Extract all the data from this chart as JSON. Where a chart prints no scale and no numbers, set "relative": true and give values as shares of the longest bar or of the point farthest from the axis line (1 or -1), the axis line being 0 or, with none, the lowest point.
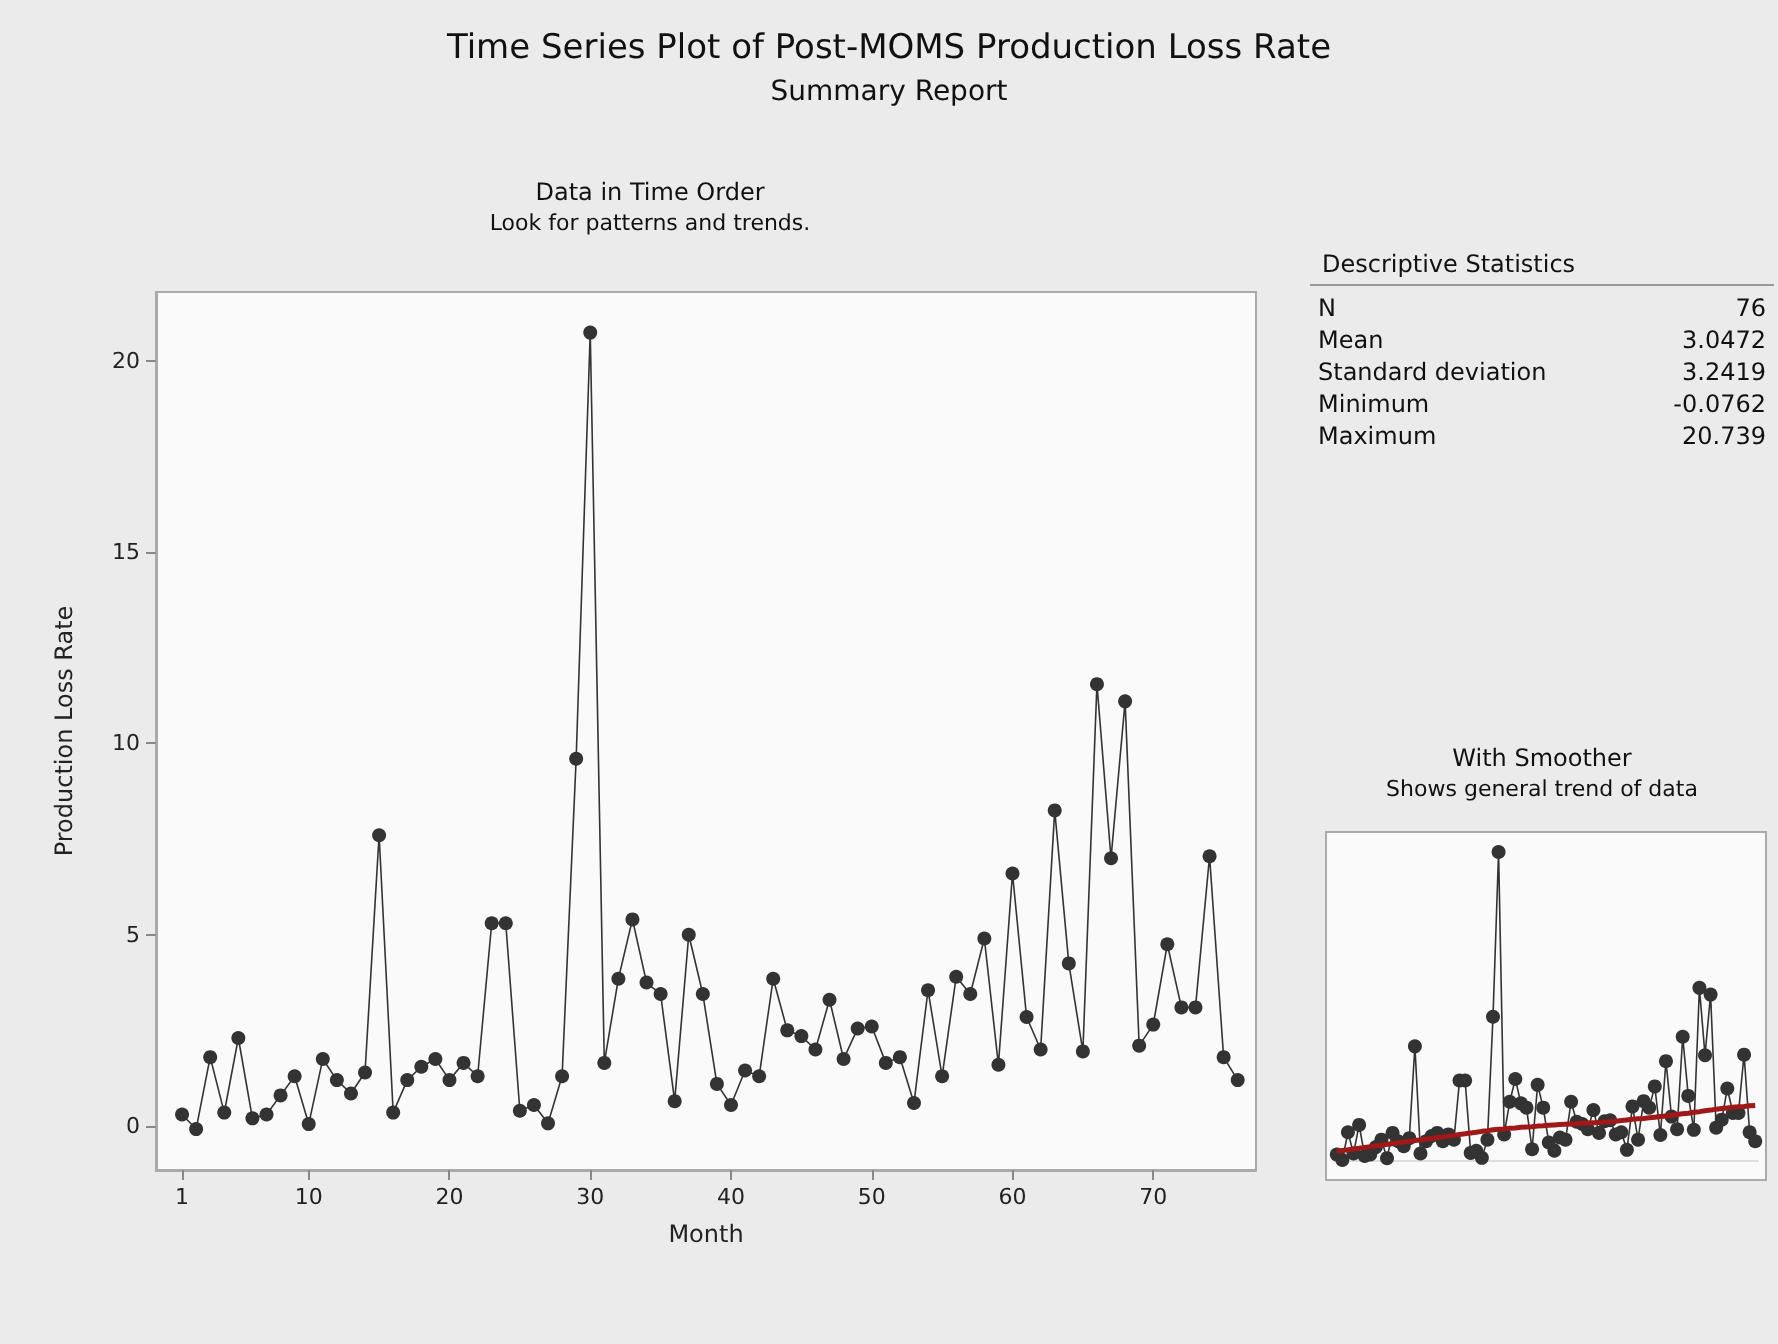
{
  "chart_data": [
    {
      "type": "line",
      "title": "Data in Time Order",
      "subtitle": "Look for patterns and trends.",
      "xlabel": "Month",
      "ylabel": "Production Loss Rate",
      "annotations": [
        "Time Series Plot of Post-MOMS Production Loss Rate",
        "Summary Report"
      ],
      "x": [
        1,
        2,
        3,
        4,
        5,
        6,
        7,
        8,
        9,
        10,
        11,
        12,
        13,
        14,
        15,
        16,
        17,
        18,
        19,
        20,
        21,
        22,
        23,
        24,
        25,
        26,
        27,
        28,
        29,
        30,
        31,
        32,
        33,
        34,
        35,
        36,
        37,
        38,
        39,
        40,
        41,
        42,
        43,
        44,
        45,
        46,
        47,
        48,
        49,
        50,
        51,
        52,
        53,
        54,
        55,
        56,
        57,
        58,
        59,
        60,
        61,
        62,
        63,
        64,
        65,
        66,
        67,
        68,
        69,
        70,
        71,
        72,
        73,
        74,
        75,
        76
      ],
      "values": [
        0.3,
        -0.08,
        1.8,
        0.35,
        2.3,
        0.2,
        0.3,
        0.8,
        1.3,
        0.05,
        1.75,
        1.2,
        0.85,
        1.4,
        7.6,
        0.35,
        1.2,
        1.55,
        1.75,
        1.2,
        1.65,
        1.3,
        5.3,
        5.3,
        0.4,
        0.55,
        0.07,
        1.3,
        9.6,
        20.739,
        1.65,
        3.85,
        5.4,
        3.75,
        3.45,
        0.65,
        5.0,
        3.45,
        1.1,
        0.55,
        1.45,
        1.3,
        3.85,
        2.5,
        2.35,
        2.0,
        3.3,
        1.75,
        2.55,
        2.6,
        1.65,
        1.8,
        0.6,
        3.55,
        1.3,
        3.9,
        3.45,
        4.9,
        1.6,
        6.6,
        2.85,
        2.0,
        8.25,
        4.25,
        1.95,
        11.55,
        7.0,
        11.1,
        2.1,
        2.65,
        4.75,
        3.1,
        3.1,
        7.05,
        1.8,
        1.2
      ],
      "color": "#333333",
      "marker": "circle",
      "line_style": "solid",
      "xlim": [
        -0.85,
        77.3
      ],
      "ylim": [
        -1.15,
        21.8
      ],
      "xticks": [
        1,
        10,
        20,
        30,
        40,
        50,
        60,
        70
      ],
      "yticks": [
        0,
        5,
        10,
        15,
        20
      ]
    },
    {
      "type": "other",
      "title": "Descriptive Statistics",
      "categories": [
        "N",
        "Mean",
        "Standard deviation",
        "Minimum",
        "Maximum"
      ],
      "values": [
        76,
        3.0472,
        3.2419,
        -0.0762,
        20.739
      ],
      "data_labels": true
    },
    {
      "type": "line",
      "title": "With Smoother",
      "subtitle": "Shows general trend of data",
      "relative": true,
      "categories": [
        null,
        null,
        null,
        null,
        null,
        null,
        null,
        null,
        null,
        null,
        null,
        null,
        null,
        null,
        null,
        null,
        null,
        null,
        null,
        null,
        null,
        null,
        null,
        null,
        null,
        null,
        null,
        null,
        null,
        null,
        null,
        null,
        null,
        null,
        null,
        null,
        null,
        null,
        null,
        null,
        null,
        null,
        null,
        null,
        null,
        null,
        null,
        null,
        null,
        null,
        null,
        null,
        null,
        null,
        null,
        null,
        null,
        null,
        null,
        null,
        null,
        null,
        null,
        null,
        null,
        null,
        null,
        null,
        null,
        null,
        null,
        null,
        null,
        null,
        null,
        null
      ],
      "series": [
        {
          "type": "line",
          "color": "#333333",
          "marker": "circle",
          "values": [
            0.018,
            0,
            0.09,
            0.021,
            0.114,
            0.013,
            0.018,
            0.042,
            0.066,
            0.006,
            0.088,
            0.061,
            0.045,
            0.071,
            0.369,
            0.021,
            0.061,
            0.078,
            0.088,
            0.061,
            0.083,
            0.066,
            0.258,
            0.258,
            0.023,
            0.03,
            0.007,
            0.066,
            0.465,
            1,
            0.083,
            0.189,
            0.263,
            0.184,
            0.17,
            0.035,
            0.244,
            0.17,
            0.057,
            0.03,
            0.073,
            0.066,
            0.189,
            0.124,
            0.117,
            0.1,
            0.162,
            0.088,
            0.126,
            0.129,
            0.083,
            0.09,
            0.033,
            0.174,
            0.066,
            0.191,
            0.17,
            0.239,
            0.081,
            0.321,
            0.141,
            0.1,
            0.4,
            0.208,
            0.098,
            0.559,
            0.34,
            0.537,
            0.105,
            0.131,
            0.232,
            0.153,
            0.153,
            0.342,
            0.09,
            0.061
          ]
        },
        {
          "type": "line",
          "color": "#a01818",
          "marker": "none",
          "values": [
            0.028,
            0.031,
            0.033,
            0.036,
            0.038,
            0.041,
            0.043,
            0.046,
            0.048,
            0.051,
            0.053,
            0.056,
            0.058,
            0.061,
            0.063,
            0.065,
            0.068,
            0.07,
            0.073,
            0.075,
            0.078,
            0.08,
            0.083,
            0.085,
            0.088,
            0.09,
            0.093,
            0.095,
            0.098,
            0.1,
            0.101,
            0.103,
            0.104,
            0.106,
            0.107,
            0.108,
            0.11,
            0.111,
            0.113,
            0.114,
            0.115,
            0.116,
            0.117,
            0.118,
            0.119,
            0.12,
            0.121,
            0.122,
            0.123,
            0.124,
            0.126,
            0.128,
            0.13,
            0.132,
            0.134,
            0.135,
            0.137,
            0.139,
            0.141,
            0.143,
            0.145,
            0.148,
            0.15,
            0.152,
            0.155,
            0.157,
            0.16,
            0.162,
            0.165,
            0.167,
            0.169,
            0.171,
            0.173,
            0.174,
            0.176,
            0.177
          ]
        }
      ]
    }
  ]
}
